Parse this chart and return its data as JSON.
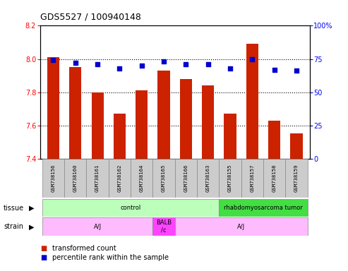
{
  "title": "GDS5527 / 100940148",
  "samples": [
    "GSM738156",
    "GSM738160",
    "GSM738161",
    "GSM738162",
    "GSM738164",
    "GSM738165",
    "GSM738166",
    "GSM738163",
    "GSM738155",
    "GSM738157",
    "GSM738158",
    "GSM738159"
  ],
  "bar_values": [
    8.01,
    7.95,
    7.8,
    7.67,
    7.81,
    7.93,
    7.88,
    7.84,
    7.67,
    8.09,
    7.63,
    7.55
  ],
  "percentile_values": [
    74,
    72,
    71,
    68,
    70,
    73,
    71,
    71,
    68,
    75,
    67,
    66
  ],
  "ylim_left": [
    7.4,
    8.2
  ],
  "ylim_right": [
    0,
    100
  ],
  "yticks_left": [
    7.4,
    7.6,
    7.8,
    8.0,
    8.2
  ],
  "yticks_right": [
    0,
    25,
    50,
    75,
    100
  ],
  "bar_color": "#cc2200",
  "dot_color": "#0000cc",
  "bar_base": 7.4,
  "tissue_groups": [
    {
      "label": "control",
      "start": 0,
      "end": 8,
      "color": "#bbffbb"
    },
    {
      "label": "rhabdomyosarcoma tumor",
      "start": 8,
      "end": 12,
      "color": "#44dd44"
    }
  ],
  "strain_groups": [
    {
      "label": "A/J",
      "start": 0,
      "end": 5,
      "color": "#ffbbff"
    },
    {
      "label": "BALB\n/c",
      "start": 5,
      "end": 6,
      "color": "#ff44ff"
    },
    {
      "label": "A/J",
      "start": 6,
      "end": 12,
      "color": "#ffbbff"
    }
  ],
  "legend_items": [
    {
      "color": "#cc2200",
      "label": "transformed count"
    },
    {
      "color": "#0000cc",
      "label": "percentile rank within the sample"
    }
  ],
  "tick_area_bg": "#cccccc",
  "plot_bg": "#ffffff",
  "right_axis_label": "100%"
}
